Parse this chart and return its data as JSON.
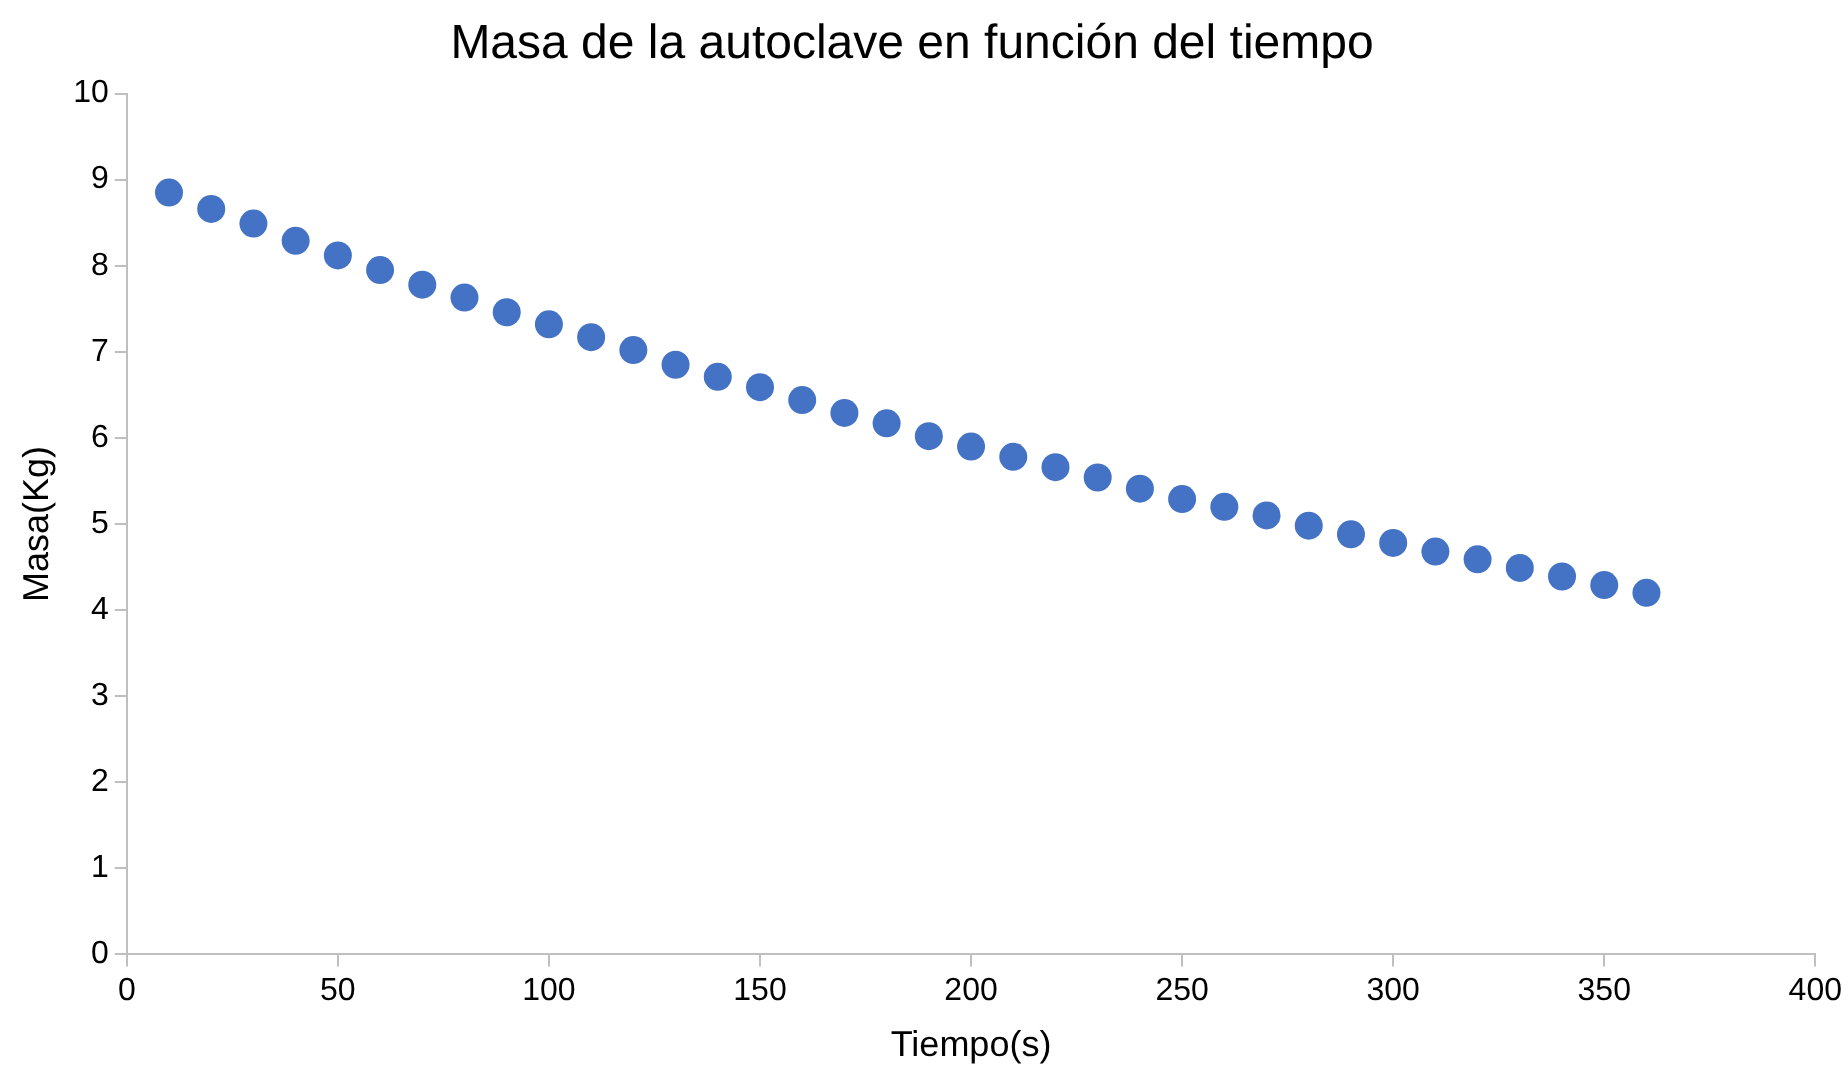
{
  "chart_data": {
    "type": "scatter",
    "title": "Masa de la autoclave en función del tiempo",
    "xlabel": "Tiempo(s)",
    "ylabel": "Masa(Kg)",
    "x": [
      10,
      20,
      30,
      40,
      50,
      60,
      70,
      80,
      90,
      100,
      110,
      120,
      130,
      140,
      150,
      160,
      170,
      180,
      190,
      200,
      210,
      220,
      230,
      240,
      250,
      260,
      270,
      280,
      290,
      300,
      310,
      320,
      330,
      340,
      350,
      360
    ],
    "series": [
      {
        "color": "#4472c4",
        "values": [
          8.85,
          8.66,
          8.49,
          8.29,
          8.12,
          7.95,
          7.78,
          7.63,
          7.46,
          7.32,
          7.17,
          7.02,
          6.85,
          6.71,
          6.59,
          6.44,
          6.29,
          6.17,
          6.02,
          5.9,
          5.78,
          5.66,
          5.54,
          5.41,
          5.29,
          5.2,
          5.1,
          4.98,
          4.88,
          4.78,
          4.68,
          4.59,
          4.49,
          4.39,
          4.29,
          4.2
        ]
      }
    ],
    "xlim": [
      0,
      400
    ],
    "xticks": [
      0,
      50,
      100,
      150,
      200,
      250,
      300,
      350,
      400
    ],
    "ylim": [
      0,
      10
    ],
    "yticks": [
      0,
      1,
      2,
      3,
      4,
      5,
      6,
      7,
      8,
      9,
      10
    ],
    "grid": false,
    "legend": false,
    "marker": "circle"
  }
}
